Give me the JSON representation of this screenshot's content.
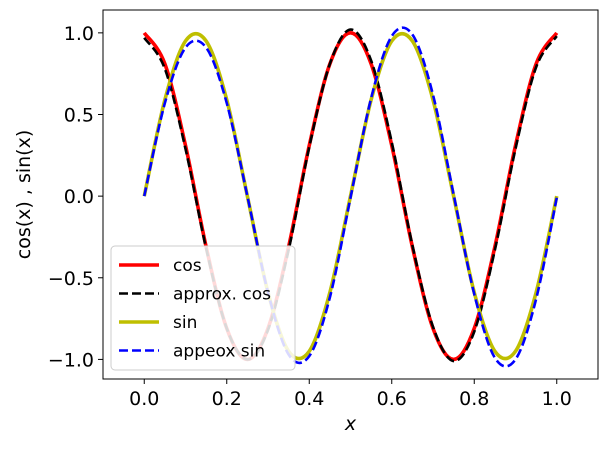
{
  "chart_data": {
    "type": "line",
    "title": "",
    "xlabel": "x",
    "ylabel": "cos(x) , sin(x)",
    "xlim": [
      -0.1,
      1.1
    ],
    "ylim": [
      -1.12,
      1.14
    ],
    "xticks": [
      0.0,
      0.2,
      0.4,
      0.6,
      0.8,
      1.0
    ],
    "xtick_labels": [
      "0.0",
      "0.2",
      "0.4",
      "0.6",
      "0.8",
      "1.0"
    ],
    "yticks": [
      -1.0,
      -0.5,
      0.0,
      0.5,
      1.0
    ],
    "ytick_labels": [
      "−1.0",
      "−0.5",
      "0.0",
      "0.5",
      "1.0"
    ],
    "grid": false,
    "legend": {
      "location": "lower-left"
    },
    "series": [
      {
        "name": "cos",
        "color": "#ff0000",
        "style": "solid",
        "x": [
          0.0,
          0.05,
          0.1,
          0.15,
          0.2,
          0.25,
          0.3,
          0.35,
          0.4,
          0.45,
          0.5,
          0.55,
          0.6,
          0.65,
          0.7,
          0.75,
          0.8,
          0.85,
          0.9,
          0.95,
          1.0
        ],
        "y": [
          1.0,
          0.81,
          0.31,
          -0.31,
          -0.81,
          -1.0,
          -0.81,
          -0.31,
          0.31,
          0.81,
          1.0,
          0.81,
          0.31,
          -0.31,
          -0.81,
          -1.0,
          -0.81,
          -0.31,
          0.31,
          0.81,
          1.0
        ]
      },
      {
        "name": "approx. cos",
        "color": "#000000",
        "style": "dashed",
        "x": [
          0.0,
          0.05,
          0.1,
          0.15,
          0.2,
          0.25,
          0.3,
          0.35,
          0.4,
          0.45,
          0.5,
          0.55,
          0.6,
          0.65,
          0.7,
          0.75,
          0.8,
          0.85,
          0.9,
          0.95,
          1.0
        ],
        "y": [
          0.97,
          0.78,
          0.29,
          -0.32,
          -0.81,
          -1.0,
          -0.82,
          -0.33,
          0.3,
          0.81,
          1.02,
          0.83,
          0.33,
          -0.3,
          -0.8,
          -1.01,
          -0.83,
          -0.33,
          0.29,
          0.79,
          0.98
        ]
      },
      {
        "name": "sin",
        "color": "#bfbf00",
        "style": "solid",
        "x": [
          0.0,
          0.05,
          0.1,
          0.15,
          0.2,
          0.25,
          0.3,
          0.35,
          0.4,
          0.45,
          0.5,
          0.55,
          0.6,
          0.65,
          0.7,
          0.75,
          0.8,
          0.85,
          0.9,
          0.95,
          1.0
        ],
        "y": [
          0.0,
          0.59,
          0.95,
          0.95,
          0.59,
          0.0,
          -0.59,
          -0.95,
          -0.95,
          -0.59,
          0.0,
          0.59,
          0.95,
          0.95,
          0.59,
          0.0,
          -0.59,
          -0.95,
          -0.95,
          -0.59,
          0.0
        ]
      },
      {
        "name": "appeox sin",
        "color": "#0000ff",
        "style": "dashed",
        "x": [
          0.0,
          0.05,
          0.1,
          0.15,
          0.2,
          0.25,
          0.3,
          0.35,
          0.4,
          0.45,
          0.5,
          0.55,
          0.6,
          0.65,
          0.7,
          0.75,
          0.8,
          0.85,
          0.9,
          0.95,
          1.0
        ],
        "y": [
          0.0,
          0.57,
          0.91,
          0.91,
          0.57,
          0.0,
          -0.59,
          -0.97,
          -0.98,
          -0.62,
          -0.01,
          0.6,
          0.98,
          0.99,
          0.62,
          0.01,
          -0.6,
          -0.99,
          -1.0,
          -0.63,
          -0.01
        ]
      }
    ]
  }
}
